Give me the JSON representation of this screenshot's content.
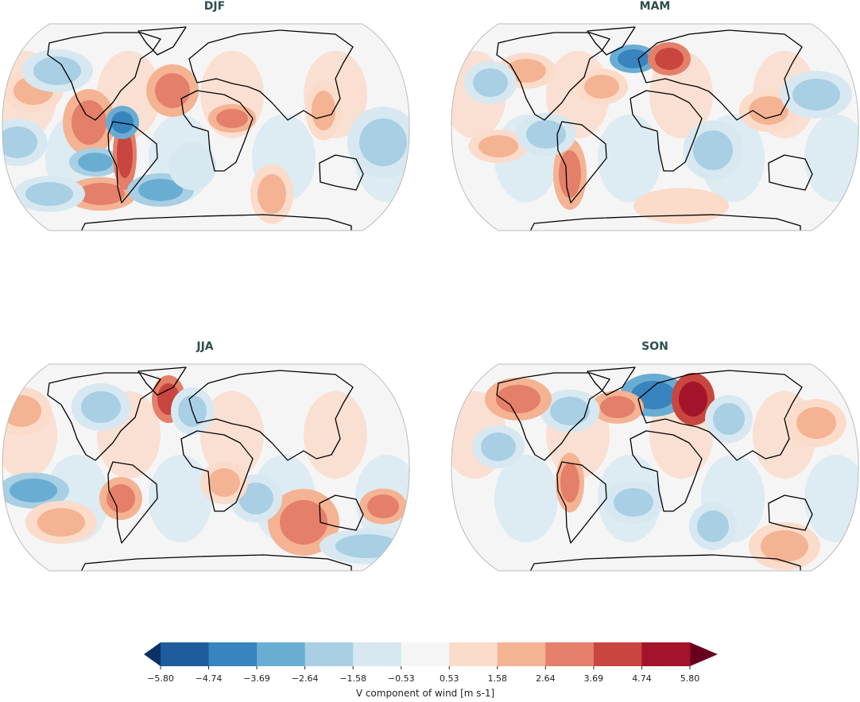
{
  "panels": [
    {
      "title": "DJF"
    },
    {
      "title": "MAM"
    },
    {
      "title": "JJA"
    },
    {
      "title": "SON"
    }
  ],
  "colorbar": {
    "label": "V component of wind [m s-1]",
    "ticks": [
      "−5.80",
      "−4.74",
      "−3.69",
      "−2.64",
      "−1.58",
      "−0.53",
      "0.53",
      "1.58",
      "2.64",
      "3.69",
      "4.74",
      "5.80"
    ],
    "colors": [
      "#1f5c9e",
      "#3884bf",
      "#6aadd3",
      "#a8cfe4",
      "#d7e8f1",
      "#f5f5f5",
      "#fbdbc9",
      "#f4b393",
      "#e47f69",
      "#c9453f",
      "#a3142a"
    ],
    "extend_low": "#0a3263",
    "extend_high": "#67001f",
    "extend": "both"
  },
  "colormap": "RdBu_r",
  "projection": "Robinson",
  "coastline_color": "#000000"
}
